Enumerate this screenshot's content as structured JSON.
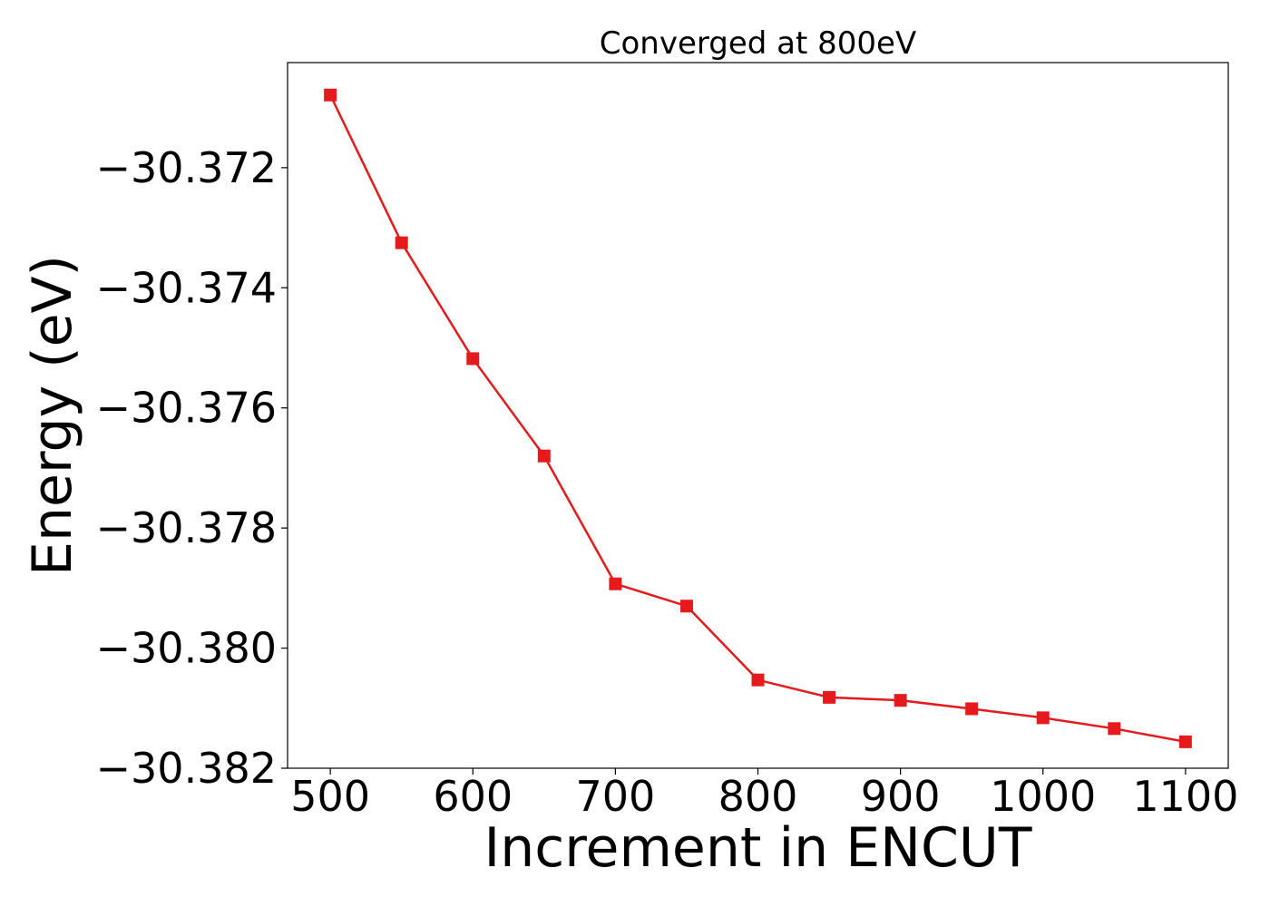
{
  "chart_data": {
    "type": "line",
    "title": "Converged at 800eV",
    "xlabel": "Increment in ENCUT",
    "ylabel": "Energy (eV)",
    "xlim": [
      470,
      1130
    ],
    "ylim": [
      -30.382,
      -30.37025
    ],
    "xticks": [
      500,
      600,
      700,
      800,
      900,
      1000,
      1100
    ],
    "yticks": [
      -30.372,
      -30.374,
      -30.376,
      -30.378,
      -30.38,
      -30.382
    ],
    "ytick_labels": [
      "−30.372",
      "−30.374",
      "−30.376",
      "−30.378",
      "−30.380",
      "−30.382"
    ],
    "grid": false,
    "series": [
      {
        "color": "#e41a1c",
        "marker": "square",
        "x": [
          500,
          550,
          600,
          650,
          700,
          750,
          800,
          850,
          900,
          950,
          1000,
          1050,
          1100
        ],
        "y": [
          -30.37079,
          -30.37325,
          -30.37518,
          -30.3768,
          -30.37893,
          -30.3793,
          -30.38053,
          -30.38082,
          -30.38087,
          -30.38101,
          -30.38116,
          -30.38134,
          -30.38156
        ]
      }
    ]
  }
}
